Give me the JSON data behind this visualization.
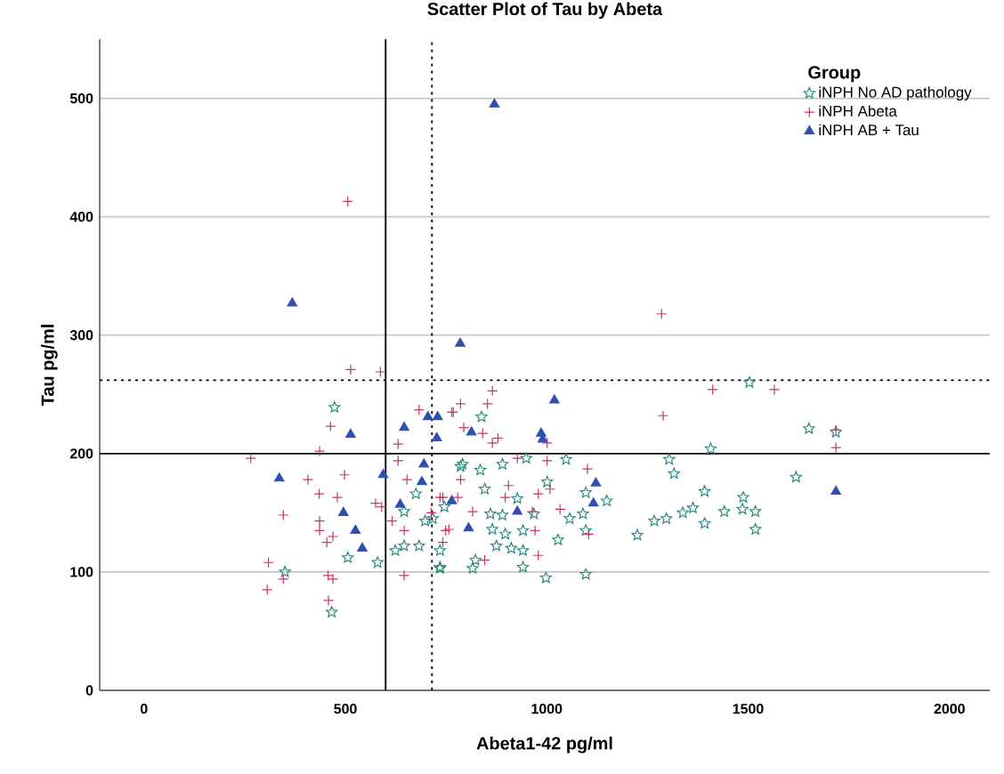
{
  "chart_data": {
    "type": "scatter",
    "title": "Scatter Plot of Tau by Abeta",
    "xlabel": "Abeta1-42 pg/ml",
    "ylabel": "Tau pg/ml",
    "legend_title": "Group",
    "legend": "top right",
    "grid": "y",
    "xlim": [
      -110,
      2100
    ],
    "ylim": [
      0,
      550
    ],
    "xticks": [
      0,
      500,
      1000,
      1500,
      2000
    ],
    "yticks": [
      0,
      100,
      200,
      300,
      400,
      500
    ],
    "ref_lines": [
      {
        "axis": "x",
        "value": 600,
        "line_style": "solid"
      },
      {
        "axis": "x",
        "value": 715,
        "line_style": "dotted"
      },
      {
        "axis": "y",
        "value": 200,
        "line_style": "solid"
      },
      {
        "axis": "y",
        "value": 262,
        "line_style": "dotted"
      }
    ],
    "series": [
      {
        "name": "iNPH No AD pathology",
        "color": "#2a8a80",
        "marker": "star",
        "x": [
          473,
          350,
          466,
          506,
          580,
          624,
          646,
          683,
          646,
          675,
          698,
          717,
          735,
          735,
          746,
          786,
          791,
          838,
          835,
          890,
          949,
          1048,
          1304,
          1316,
          1407,
          1503,
          846,
          927,
          1001,
          1097,
          1149,
          860,
          890,
          968,
          1057,
          1090,
          865,
          897,
          941,
          1028,
          1097,
          875,
          912,
          941,
          823,
          816,
          941,
          998,
          1097,
          735,
          1225,
          1267,
          1297,
          1338,
          1363,
          1392,
          1392,
          1441,
          1486,
          1488,
          1518,
          1518,
          1651,
          1619,
          1718
        ],
        "values": [
          239,
          100,
          66,
          112,
          108,
          118,
          122,
          122,
          151,
          166,
          143,
          145,
          118,
          104,
          155,
          189,
          191,
          231,
          186,
          191,
          196,
          195,
          195,
          183,
          204,
          260,
          170,
          162,
          176,
          167,
          160,
          149,
          148,
          149,
          145,
          149,
          136,
          132,
          135,
          127,
          135,
          122,
          120,
          118,
          110,
          103,
          104,
          95,
          98,
          103,
          131,
          143,
          145,
          150,
          154,
          168,
          141,
          151,
          153,
          163,
          151,
          136,
          221,
          180,
          218
        ]
      },
      {
        "name": "iNPH Abeta",
        "color": "#c8336e",
        "marker": "cross",
        "x": [
          506,
          513,
          587,
          1285,
          463,
          436,
          265,
          407,
          498,
          435,
          480,
          346,
          436,
          436,
          469,
          454,
          309,
          346,
          306,
          457,
          469,
          458,
          575,
          590,
          631,
          631,
          653,
          616,
          646,
          646,
          683,
          713,
          749,
          768,
          779,
          742,
          764,
          786,
          853,
          865,
          794,
          841,
          879,
          865,
          927,
          1001,
          1001,
          786,
          905,
          979,
          1008,
          897,
          1101,
          735,
          816,
          964,
          1033,
          757,
          742,
          971,
          1104,
          979,
          846,
          1289,
          1412,
          1565,
          1718,
          1718
        ],
        "values": [
          413,
          271,
          269,
          318,
          223,
          202,
          196,
          178,
          182,
          166,
          163,
          148,
          143,
          135,
          130,
          125,
          108,
          94,
          85,
          97,
          94,
          76,
          158,
          155,
          208,
          194,
          178,
          143,
          135,
          97,
          237,
          150,
          135,
          235,
          163,
          163,
          235,
          242,
          242,
          253,
          222,
          217,
          213,
          209,
          196,
          209,
          194,
          178,
          173,
          166,
          170,
          163,
          187,
          163,
          151,
          151,
          153,
          136,
          125,
          135,
          132,
          114,
          110,
          232,
          254,
          254,
          220,
          205
        ]
      },
      {
        "name": "iNPH AB + Tau",
        "color": "#2f4fae",
        "marker": "triangle",
        "x": [
          870,
          368,
          785,
          513,
          336,
          594,
          646,
          705,
          729,
          727,
          695,
          690,
          636,
          764,
          495,
          525,
          542,
          813,
          986,
          990,
          1019,
          927,
          806,
          1122,
          1116,
          1718
        ],
        "values": [
          495,
          327,
          293,
          216,
          179,
          182,
          222,
          231,
          231,
          213,
          191,
          176,
          157,
          160,
          150,
          135,
          120,
          218,
          217,
          212,
          245,
          151,
          137,
          175,
          158,
          168
        ]
      }
    ]
  }
}
